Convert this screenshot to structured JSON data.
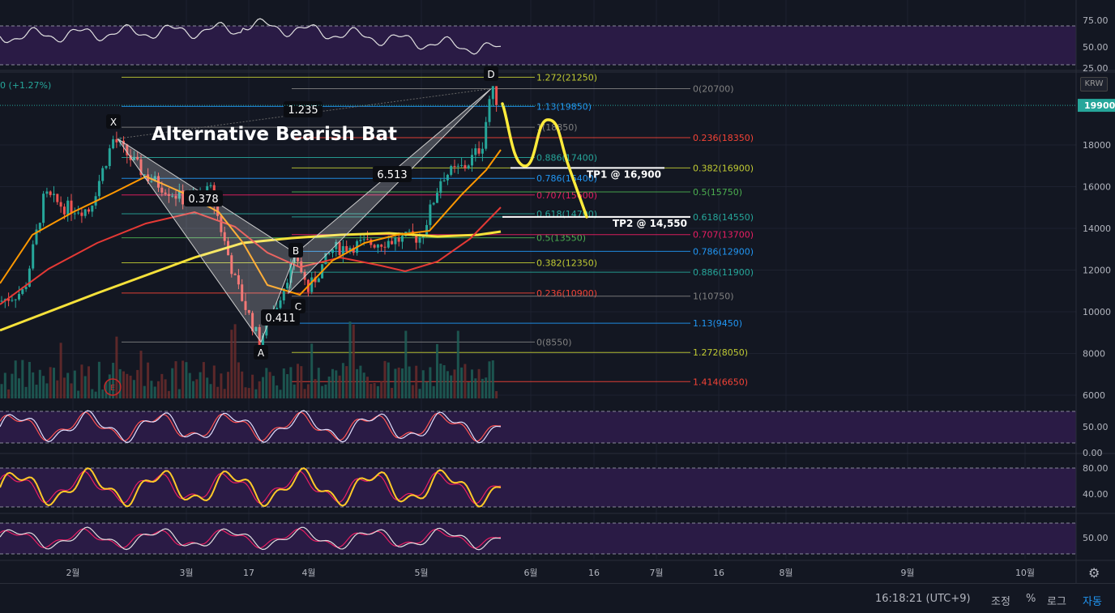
{
  "chart_data": {
    "type": "candlestick",
    "title": "Alternative Bearish Bat",
    "currency": "KRW",
    "change_text": "0 (+1.27%)",
    "current_price": "19900",
    "price_axis": {
      "ticks": [
        "18000",
        "16000",
        "14000",
        "12000",
        "10000",
        "8000",
        "6000"
      ],
      "ylim": [
        5700,
        21600
      ]
    },
    "time_axis": {
      "ticks": [
        "2월",
        "3월",
        "17",
        "4월",
        "5월",
        "6월",
        "16",
        "7월",
        "16",
        "8월",
        "9월",
        "10월"
      ]
    },
    "pattern_points": [
      {
        "label": "X",
        "price": 18300
      },
      {
        "label": "A",
        "price": 8550
      },
      {
        "label": "B",
        "price": 12800
      },
      {
        "label": "C",
        "price": 10900
      },
      {
        "label": "D",
        "price": 20700
      }
    ],
    "pattern_ratios": [
      "1.235",
      "0.378",
      "0.411",
      "6.513"
    ],
    "fib_levels_left": [
      {
        "label": "1.272(21250)",
        "price": 21250,
        "color": "#c0ca33"
      },
      {
        "label": "1.13(19850)",
        "price": 19850,
        "color": "#2196f3"
      },
      {
        "label": "1(18850)",
        "price": 18850,
        "color": "#808080"
      },
      {
        "label": "0.886(17400)",
        "price": 17400,
        "color": "#26a69a"
      },
      {
        "label": "0.786(16400)",
        "price": 16400,
        "color": "#2196f3"
      },
      {
        "label": "0.707(15600)",
        "price": 15600,
        "color": "#e91e63"
      },
      {
        "label": "0.618(14700)",
        "price": 14700,
        "color": "#26a69a"
      },
      {
        "label": "0.5(13550)",
        "price": 13550,
        "color": "#4caf50"
      },
      {
        "label": "0.382(12350)",
        "price": 12350,
        "color": "#c0ca33"
      },
      {
        "label": "0.236(10900)",
        "price": 10900,
        "color": "#f44336"
      },
      {
        "label": "0(8550)",
        "price": 8550,
        "color": "#808080"
      }
    ],
    "fib_levels_right": [
      {
        "label": "0(20700)",
        "price": 20700,
        "color": "#808080"
      },
      {
        "label": "0.236(18350)",
        "price": 18350,
        "color": "#f44336"
      },
      {
        "label": "0.382(16900)",
        "price": 16900,
        "color": "#c0ca33"
      },
      {
        "label": "0.5(15750)",
        "price": 15750,
        "color": "#4caf50"
      },
      {
        "label": "0.618(14550)",
        "price": 14550,
        "color": "#26a69a"
      },
      {
        "label": "0.707(13700)",
        "price": 13700,
        "color": "#e91e63"
      },
      {
        "label": "0.786(12900)",
        "price": 12900,
        "color": "#2196f3"
      },
      {
        "label": "0.886(11900)",
        "price": 11900,
        "color": "#26a69a"
      },
      {
        "label": "1(10750)",
        "price": 10750,
        "color": "#808080"
      },
      {
        "label": "1.13(9450)",
        "price": 9450,
        "color": "#2196f3"
      },
      {
        "label": "1.272(8050)",
        "price": 8050,
        "color": "#c0ca33"
      },
      {
        "label": "1.414(6650)",
        "price": 6650,
        "color": "#f44336"
      }
    ],
    "targets": [
      {
        "label": "TP1 @ 16,900",
        "price": 16900
      },
      {
        "label": "TP2 @ 14,550",
        "price": 14550
      }
    ],
    "rsi_panel": {
      "ticks": [
        "75.00",
        "50.00",
        "25.00"
      ]
    },
    "stoch_panel": {
      "ticks": [
        "50.00",
        "0.00"
      ]
    },
    "stoch_rsi_panel": {
      "ticks": [
        "80.00",
        "40.00"
      ]
    },
    "momentum_panel": {
      "ticks": [
        "50.00"
      ]
    },
    "earnings_marker": "E"
  },
  "status_bar": {
    "time": "16:18:21 (UTC+9)",
    "adjust": "조정",
    "percent": "%",
    "log": "로그",
    "auto": "자동"
  },
  "colors": {
    "background": "#131722",
    "up": "#26a69a",
    "down": "#ef5350",
    "accent": "#26a69a"
  }
}
